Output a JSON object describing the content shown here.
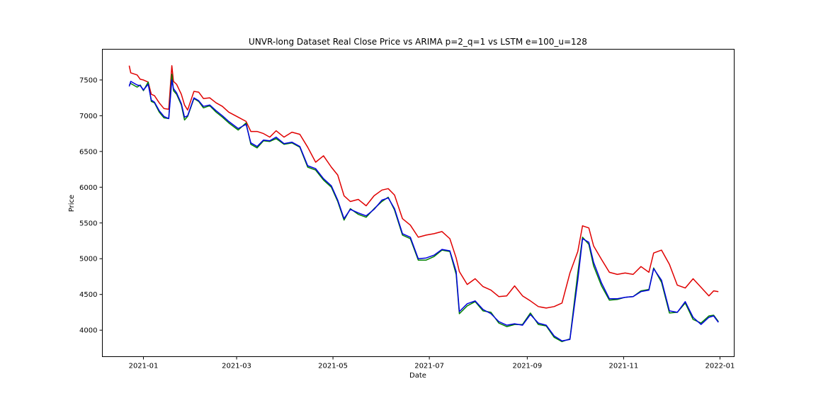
{
  "colors": {
    "real": "#e00000",
    "arima": "#008000",
    "lstm": "#0000e0",
    "axes": "#000000",
    "background": "#ffffff"
  },
  "chart_data": {
    "type": "line",
    "title": "UNVR-long Dataset Real Close Price vs ARIMA p=2_q=1 vs LSTM e=100_u=128",
    "xlabel": "Date",
    "ylabel": "Price",
    "xlim": [
      "2020-12-06",
      "2022-01-10"
    ],
    "ylim": [
      3630,
      7930
    ],
    "grid": false,
    "xticks": [
      "2021-01-01",
      "2021-03-01",
      "2021-05-01",
      "2021-07-01",
      "2021-09-01",
      "2021-11-01",
      "2022-01-01"
    ],
    "xtick_labels": [
      "2021-01",
      "2021-03",
      "2021-05",
      "2021-07",
      "2021-09",
      "2021-11",
      "2022-01"
    ],
    "yticks": [
      4000,
      4500,
      5000,
      5500,
      6000,
      6500,
      7000,
      7500
    ],
    "series": [
      {
        "key": "real",
        "x": [
          "2020-12-23",
          "2020-12-24",
          "2020-12-28",
          "2020-12-30",
          "2021-01-01",
          "2021-01-04",
          "2021-01-06",
          "2021-01-08",
          "2021-01-11",
          "2021-01-14",
          "2021-01-17",
          "2021-01-19",
          "2021-01-20",
          "2021-01-22",
          "2021-01-25",
          "2021-01-27",
          "2021-01-29",
          "2021-02-02",
          "2021-02-05",
          "2021-02-08",
          "2021-02-12",
          "2021-02-16",
          "2021-02-20",
          "2021-02-24",
          "2021-03-02",
          "2021-03-07",
          "2021-03-10",
          "2021-03-14",
          "2021-03-18",
          "2021-03-22",
          "2021-03-26",
          "2021-03-31",
          "2021-04-05",
          "2021-04-10",
          "2021-04-15",
          "2021-04-20",
          "2021-04-25",
          "2021-04-30",
          "2021-05-04",
          "2021-05-08",
          "2021-05-12",
          "2021-05-17",
          "2021-05-22",
          "2021-05-27",
          "2021-06-01",
          "2021-06-05",
          "2021-06-09",
          "2021-06-14",
          "2021-06-19",
          "2021-06-24",
          "2021-06-29",
          "2021-07-04",
          "2021-07-09",
          "2021-07-14",
          "2021-07-18",
          "2021-07-20",
          "2021-07-25",
          "2021-07-30",
          "2021-08-04",
          "2021-08-09",
          "2021-08-14",
          "2021-08-19",
          "2021-08-24",
          "2021-08-29",
          "2021-09-03",
          "2021-09-08",
          "2021-09-13",
          "2021-09-18",
          "2021-09-23",
          "2021-09-28",
          "2021-10-03",
          "2021-10-06",
          "2021-10-10",
          "2021-10-13",
          "2021-10-18",
          "2021-10-23",
          "2021-10-28",
          "2021-11-02",
          "2021-11-07",
          "2021-11-12",
          "2021-11-17",
          "2021-11-20",
          "2021-11-25",
          "2021-11-30",
          "2021-12-05",
          "2021-12-10",
          "2021-12-15",
          "2021-12-20",
          "2021-12-25",
          "2021-12-28",
          "2021-12-31"
        ],
        "values": [
          7700,
          7600,
          7570,
          7510,
          7500,
          7470,
          7300,
          7280,
          7180,
          7100,
          7090,
          7700,
          7480,
          7440,
          7300,
          7150,
          7080,
          7340,
          7330,
          7240,
          7250,
          7180,
          7130,
          7050,
          6980,
          6920,
          6780,
          6780,
          6750,
          6700,
          6790,
          6700,
          6770,
          6740,
          6560,
          6350,
          6440,
          6280,
          6170,
          5880,
          5800,
          5830,
          5740,
          5880,
          5960,
          5980,
          5890,
          5560,
          5470,
          5300,
          5330,
          5350,
          5380,
          5280,
          5010,
          4820,
          4640,
          4720,
          4610,
          4560,
          4470,
          4480,
          4620,
          4480,
          4410,
          4330,
          4310,
          4330,
          4380,
          4800,
          5100,
          5460,
          5430,
          5180,
          4990,
          4810,
          4780,
          4800,
          4780,
          4890,
          4810,
          5080,
          5120,
          4920,
          4630,
          4590,
          4720,
          4600,
          4480,
          4550,
          4540
        ]
      },
      {
        "key": "arima",
        "x": [
          "2020-12-23",
          "2020-12-24",
          "2020-12-28",
          "2020-12-30",
          "2021-01-01",
          "2021-01-04",
          "2021-01-06",
          "2021-01-08",
          "2021-01-11",
          "2021-01-14",
          "2021-01-17",
          "2021-01-19",
          "2021-01-20",
          "2021-01-22",
          "2021-01-25",
          "2021-01-27",
          "2021-01-29",
          "2021-02-02",
          "2021-02-05",
          "2021-02-08",
          "2021-02-12",
          "2021-02-16",
          "2021-02-20",
          "2021-02-24",
          "2021-03-02",
          "2021-03-07",
          "2021-03-10",
          "2021-03-14",
          "2021-03-18",
          "2021-03-22",
          "2021-03-26",
          "2021-03-31",
          "2021-04-05",
          "2021-04-10",
          "2021-04-15",
          "2021-04-20",
          "2021-04-25",
          "2021-04-30",
          "2021-05-04",
          "2021-05-08",
          "2021-05-12",
          "2021-05-17",
          "2021-05-22",
          "2021-05-27",
          "2021-06-01",
          "2021-06-05",
          "2021-06-09",
          "2021-06-14",
          "2021-06-19",
          "2021-06-24",
          "2021-06-29",
          "2021-07-04",
          "2021-07-09",
          "2021-07-14",
          "2021-07-18",
          "2021-07-20",
          "2021-07-25",
          "2021-07-30",
          "2021-08-04",
          "2021-08-09",
          "2021-08-14",
          "2021-08-19",
          "2021-08-24",
          "2021-08-29",
          "2021-09-03",
          "2021-09-08",
          "2021-09-13",
          "2021-09-18",
          "2021-09-23",
          "2021-09-28",
          "2021-10-03",
          "2021-10-06",
          "2021-10-10",
          "2021-10-13",
          "2021-10-18",
          "2021-10-23",
          "2021-10-28",
          "2021-11-02",
          "2021-11-07",
          "2021-11-12",
          "2021-11-17",
          "2021-11-20",
          "2021-11-25",
          "2021-11-30",
          "2021-12-05",
          "2021-12-10",
          "2021-12-15",
          "2021-12-20",
          "2021-12-25",
          "2021-12-28",
          "2021-12-31"
        ],
        "values": [
          7430,
          7450,
          7400,
          7430,
          7350,
          7470,
          7200,
          7180,
          7050,
          6970,
          6960,
          7580,
          7350,
          7300,
          7150,
          6940,
          6990,
          7240,
          7200,
          7110,
          7140,
          7050,
          6980,
          6900,
          6800,
          6900,
          6600,
          6550,
          6650,
          6640,
          6680,
          6600,
          6620,
          6560,
          6280,
          6240,
          6100,
          6000,
          5800,
          5540,
          5700,
          5620,
          5580,
          5700,
          5800,
          5860,
          5680,
          5330,
          5280,
          4980,
          4980,
          5030,
          5120,
          5100,
          4780,
          4230,
          4340,
          4400,
          4270,
          4250,
          4100,
          4050,
          4080,
          4080,
          4240,
          4080,
          4060,
          3900,
          3840,
          3880,
          4800,
          5300,
          5200,
          4900,
          4620,
          4420,
          4430,
          4460,
          4470,
          4550,
          4570,
          4870,
          4670,
          4240,
          4250,
          4380,
          4150,
          4100,
          4200,
          4210,
          4120
        ]
      },
      {
        "key": "lstm",
        "x": [
          "2020-12-23",
          "2020-12-24",
          "2020-12-28",
          "2020-12-30",
          "2021-01-01",
          "2021-01-04",
          "2021-01-06",
          "2021-01-08",
          "2021-01-11",
          "2021-01-14",
          "2021-01-17",
          "2021-01-19",
          "2021-01-20",
          "2021-01-22",
          "2021-01-25",
          "2021-01-27",
          "2021-01-29",
          "2021-02-02",
          "2021-02-05",
          "2021-02-08",
          "2021-02-12",
          "2021-02-16",
          "2021-02-20",
          "2021-02-24",
          "2021-03-02",
          "2021-03-07",
          "2021-03-10",
          "2021-03-14",
          "2021-03-18",
          "2021-03-22",
          "2021-03-26",
          "2021-03-31",
          "2021-04-05",
          "2021-04-10",
          "2021-04-15",
          "2021-04-20",
          "2021-04-25",
          "2021-04-30",
          "2021-05-04",
          "2021-05-08",
          "2021-05-12",
          "2021-05-17",
          "2021-05-22",
          "2021-05-27",
          "2021-06-01",
          "2021-06-05",
          "2021-06-09",
          "2021-06-14",
          "2021-06-19",
          "2021-06-24",
          "2021-06-29",
          "2021-07-04",
          "2021-07-09",
          "2021-07-14",
          "2021-07-18",
          "2021-07-20",
          "2021-07-25",
          "2021-07-30",
          "2021-08-04",
          "2021-08-09",
          "2021-08-14",
          "2021-08-19",
          "2021-08-24",
          "2021-08-29",
          "2021-09-03",
          "2021-09-08",
          "2021-09-13",
          "2021-09-18",
          "2021-09-23",
          "2021-09-28",
          "2021-10-03",
          "2021-10-06",
          "2021-10-10",
          "2021-10-13",
          "2021-10-18",
          "2021-10-23",
          "2021-10-28",
          "2021-11-02",
          "2021-11-07",
          "2021-11-12",
          "2021-11-17",
          "2021-11-20",
          "2021-11-25",
          "2021-11-30",
          "2021-12-05",
          "2021-12-10",
          "2021-12-15",
          "2021-12-20",
          "2021-12-25",
          "2021-12-28",
          "2021-12-31"
        ],
        "values": [
          7410,
          7480,
          7430,
          7420,
          7360,
          7440,
          7220,
          7190,
          7070,
          6990,
          6960,
          7500,
          7380,
          7320,
          7170,
          6980,
          7000,
          7250,
          7210,
          7130,
          7150,
          7070,
          7000,
          6920,
          6820,
          6880,
          6620,
          6570,
          6660,
          6650,
          6700,
          6610,
          6630,
          6570,
          6300,
          6260,
          6120,
          6020,
          5820,
          5560,
          5690,
          5640,
          5600,
          5690,
          5820,
          5850,
          5700,
          5350,
          5300,
          5000,
          5010,
          5050,
          5130,
          5110,
          4820,
          4260,
          4370,
          4410,
          4290,
          4230,
          4120,
          4070,
          4090,
          4070,
          4220,
          4100,
          4070,
          3920,
          3850,
          3870,
          4700,
          5280,
          5230,
          4950,
          4660,
          4440,
          4440,
          4460,
          4470,
          4540,
          4560,
          4860,
          4700,
          4270,
          4250,
          4400,
          4180,
          4080,
          4180,
          4200,
          4110
        ]
      }
    ]
  }
}
